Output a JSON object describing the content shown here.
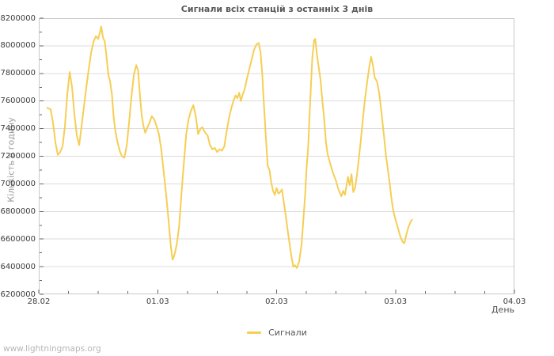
{
  "page": {
    "watermark": "www.lightningmaps.org"
  },
  "legend": {
    "position": "bottom-center",
    "items": [
      {
        "label": "Сигнали",
        "color": "#f6ce55"
      }
    ]
  },
  "colors": {
    "background": "#ffffff",
    "line": "#f6ce55",
    "grid": "#dcdcdc",
    "frame": "#c8c8c8",
    "tick": "#666666",
    "tick_label": "#3c3c3c",
    "title": "#595959",
    "x_axis_title": "#555555",
    "y_axis_title": "#999999",
    "watermark": "#b6b6b6"
  },
  "chart_data": {
    "type": "line",
    "title": "Сигнали всіх станцій з останніх 3 днів",
    "xlabel": "День",
    "ylabel": "Кількість в годину",
    "x_unit": "days since 28.02 00:00",
    "xlim": [
      0,
      4
    ],
    "ylim": [
      6200000,
      8200000
    ],
    "y_tick_step": 200000,
    "y_minor_step": 100000,
    "x_minor_step": 0.25,
    "grid": "horizontal",
    "x_ticks": [
      {
        "value": 0,
        "label": "28.02"
      },
      {
        "value": 1,
        "label": "01.03"
      },
      {
        "value": 2,
        "label": "02.03"
      },
      {
        "value": 3,
        "label": "03.03"
      },
      {
        "value": 4,
        "label": "04.03"
      }
    ],
    "series": [
      {
        "name": "Сигнали",
        "color": "#f6ce55",
        "points": [
          [
            0.07,
            7550000
          ],
          [
            0.1,
            7540000
          ],
          [
            0.12,
            7440000
          ],
          [
            0.14,
            7300000
          ],
          [
            0.16,
            7210000
          ],
          [
            0.18,
            7230000
          ],
          [
            0.2,
            7270000
          ],
          [
            0.22,
            7420000
          ],
          [
            0.24,
            7650000
          ],
          [
            0.26,
            7810000
          ],
          [
            0.28,
            7700000
          ],
          [
            0.3,
            7500000
          ],
          [
            0.32,
            7350000
          ],
          [
            0.34,
            7280000
          ],
          [
            0.36,
            7420000
          ],
          [
            0.38,
            7560000
          ],
          [
            0.4,
            7700000
          ],
          [
            0.42,
            7830000
          ],
          [
            0.44,
            7950000
          ],
          [
            0.46,
            8030000
          ],
          [
            0.48,
            8070000
          ],
          [
            0.5,
            8050000
          ],
          [
            0.515,
            8100000
          ],
          [
            0.525,
            8140000
          ],
          [
            0.54,
            8060000
          ],
          [
            0.555,
            8030000
          ],
          [
            0.57,
            7920000
          ],
          [
            0.585,
            7790000
          ],
          [
            0.6,
            7740000
          ],
          [
            0.615,
            7650000
          ],
          [
            0.63,
            7480000
          ],
          [
            0.645,
            7380000
          ],
          [
            0.66,
            7310000
          ],
          [
            0.68,
            7240000
          ],
          [
            0.7,
            7200000
          ],
          [
            0.72,
            7190000
          ],
          [
            0.74,
            7280000
          ],
          [
            0.76,
            7450000
          ],
          [
            0.78,
            7640000
          ],
          [
            0.8,
            7790000
          ],
          [
            0.82,
            7860000
          ],
          [
            0.835,
            7820000
          ],
          [
            0.85,
            7650000
          ],
          [
            0.865,
            7500000
          ],
          [
            0.88,
            7420000
          ],
          [
            0.895,
            7370000
          ],
          [
            0.91,
            7400000
          ],
          [
            0.93,
            7440000
          ],
          [
            0.95,
            7490000
          ],
          [
            0.97,
            7470000
          ],
          [
            0.99,
            7420000
          ],
          [
            1.01,
            7360000
          ],
          [
            1.03,
            7250000
          ],
          [
            1.05,
            7090000
          ],
          [
            1.07,
            6930000
          ],
          [
            1.09,
            6750000
          ],
          [
            1.11,
            6550000
          ],
          [
            1.125,
            6450000
          ],
          [
            1.135,
            6470000
          ],
          [
            1.145,
            6500000
          ],
          [
            1.16,
            6560000
          ],
          [
            1.18,
            6690000
          ],
          [
            1.2,
            6930000
          ],
          [
            1.22,
            7150000
          ],
          [
            1.24,
            7360000
          ],
          [
            1.26,
            7470000
          ],
          [
            1.28,
            7530000
          ],
          [
            1.3,
            7570000
          ],
          [
            1.32,
            7490000
          ],
          [
            1.34,
            7360000
          ],
          [
            1.36,
            7400000
          ],
          [
            1.375,
            7410000
          ],
          [
            1.4,
            7370000
          ],
          [
            1.42,
            7350000
          ],
          [
            1.44,
            7280000
          ],
          [
            1.46,
            7250000
          ],
          [
            1.48,
            7260000
          ],
          [
            1.5,
            7230000
          ],
          [
            1.52,
            7250000
          ],
          [
            1.54,
            7240000
          ],
          [
            1.56,
            7270000
          ],
          [
            1.58,
            7380000
          ],
          [
            1.6,
            7480000
          ],
          [
            1.62,
            7550000
          ],
          [
            1.64,
            7610000
          ],
          [
            1.655,
            7640000
          ],
          [
            1.67,
            7620000
          ],
          [
            1.685,
            7660000
          ],
          [
            1.7,
            7600000
          ],
          [
            1.715,
            7650000
          ],
          [
            1.73,
            7680000
          ],
          [
            1.75,
            7760000
          ],
          [
            1.77,
            7830000
          ],
          [
            1.79,
            7900000
          ],
          [
            1.81,
            7970000
          ],
          [
            1.83,
            8010000
          ],
          [
            1.85,
            8020000
          ],
          [
            1.865,
            7950000
          ],
          [
            1.88,
            7790000
          ],
          [
            1.89,
            7620000
          ],
          [
            1.9,
            7480000
          ],
          [
            1.91,
            7330000
          ],
          [
            1.925,
            7130000
          ],
          [
            1.94,
            7100000
          ],
          [
            1.955,
            7010000
          ],
          [
            1.97,
            6950000
          ],
          [
            1.985,
            6920000
          ],
          [
            2.0,
            6970000
          ],
          [
            2.015,
            6930000
          ],
          [
            2.03,
            6940000
          ],
          [
            2.045,
            6960000
          ],
          [
            2.06,
            6870000
          ],
          [
            2.08,
            6750000
          ],
          [
            2.1,
            6620000
          ],
          [
            2.12,
            6500000
          ],
          [
            2.14,
            6400000
          ],
          [
            2.155,
            6410000
          ],
          [
            2.17,
            6390000
          ],
          [
            2.19,
            6440000
          ],
          [
            2.21,
            6560000
          ],
          [
            2.225,
            6740000
          ],
          [
            2.24,
            6920000
          ],
          [
            2.25,
            7090000
          ],
          [
            2.265,
            7260000
          ],
          [
            2.28,
            7550000
          ],
          [
            2.29,
            7730000
          ],
          [
            2.3,
            7910000
          ],
          [
            2.315,
            8040000
          ],
          [
            2.325,
            8050000
          ],
          [
            2.34,
            7930000
          ],
          [
            2.355,
            7840000
          ],
          [
            2.37,
            7750000
          ],
          [
            2.385,
            7600000
          ],
          [
            2.4,
            7470000
          ],
          [
            2.415,
            7300000
          ],
          [
            2.43,
            7210000
          ],
          [
            2.45,
            7150000
          ],
          [
            2.47,
            7090000
          ],
          [
            2.5,
            7020000
          ],
          [
            2.52,
            6960000
          ],
          [
            2.545,
            6910000
          ],
          [
            2.56,
            6950000
          ],
          [
            2.575,
            6920000
          ],
          [
            2.6,
            7050000
          ],
          [
            2.615,
            6990000
          ],
          [
            2.63,
            7070000
          ],
          [
            2.645,
            6940000
          ],
          [
            2.66,
            6970000
          ],
          [
            2.675,
            7060000
          ],
          [
            2.69,
            7170000
          ],
          [
            2.705,
            7290000
          ],
          [
            2.72,
            7420000
          ],
          [
            2.735,
            7550000
          ],
          [
            2.75,
            7660000
          ],
          [
            2.765,
            7760000
          ],
          [
            2.78,
            7850000
          ],
          [
            2.795,
            7920000
          ],
          [
            2.81,
            7860000
          ],
          [
            2.825,
            7770000
          ],
          [
            2.845,
            7740000
          ],
          [
            2.86,
            7670000
          ],
          [
            2.875,
            7570000
          ],
          [
            2.89,
            7450000
          ],
          [
            2.905,
            7330000
          ],
          [
            2.92,
            7200000
          ],
          [
            2.935,
            7110000
          ],
          [
            2.95,
            7010000
          ],
          [
            2.965,
            6900000
          ],
          [
            2.98,
            6810000
          ],
          [
            3.0,
            6740000
          ],
          [
            3.02,
            6680000
          ],
          [
            3.04,
            6620000
          ],
          [
            3.06,
            6580000
          ],
          [
            3.075,
            6570000
          ],
          [
            3.09,
            6630000
          ],
          [
            3.11,
            6690000
          ],
          [
            3.13,
            6730000
          ],
          [
            3.14,
            6740000
          ]
        ]
      }
    ]
  }
}
